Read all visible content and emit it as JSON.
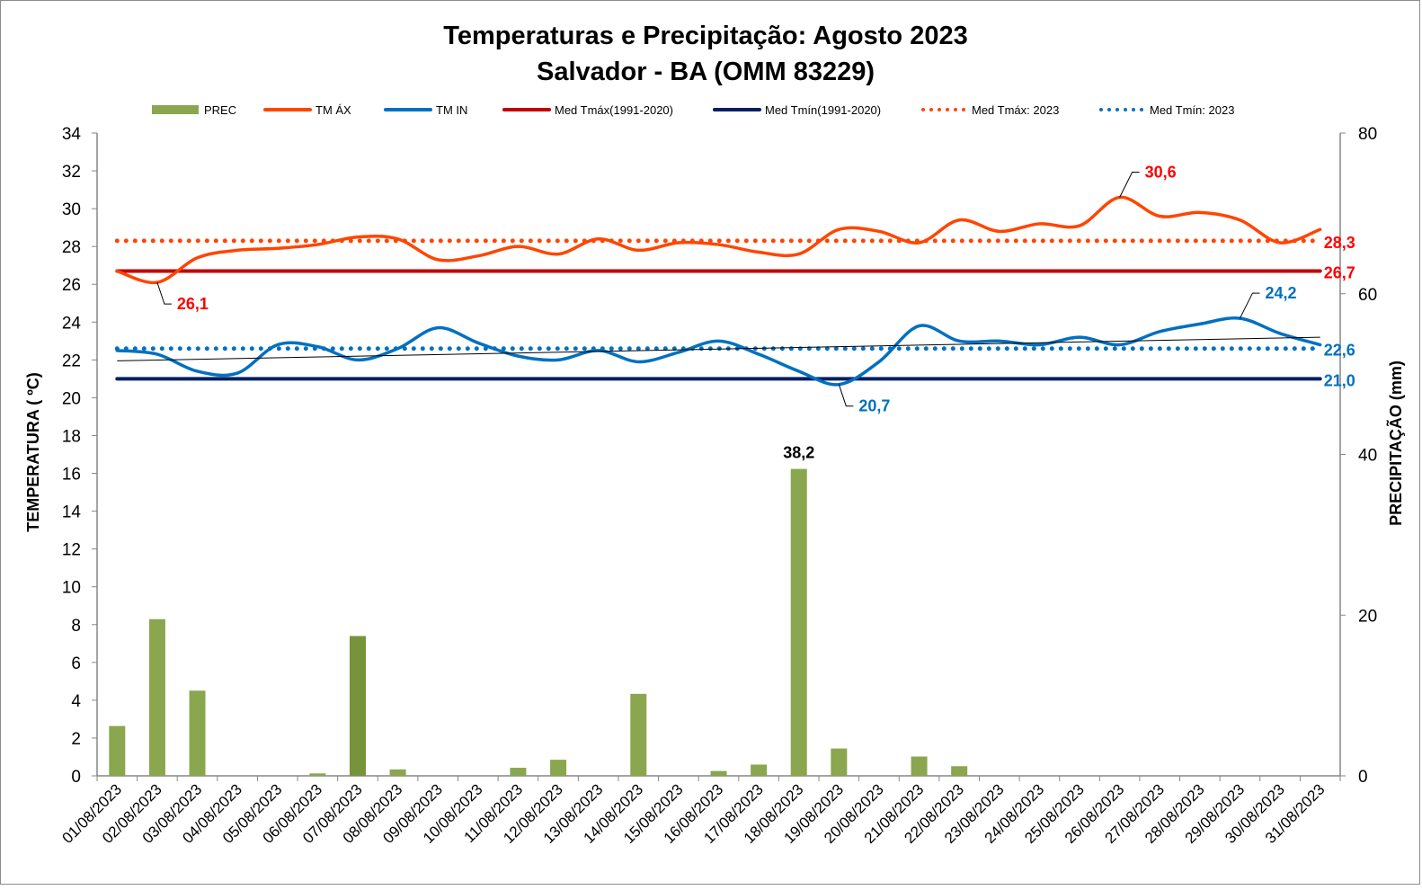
{
  "chart_data": {
    "type": "bar+line",
    "title": "Temperaturas e Precipitação: Agosto 2023",
    "subtitle": "Salvador - BA (OMM 83229)",
    "ylabel_left": "TEMPERATURA  ( ºC)",
    "ylabel_right": "PRECIPITAÇÃO  (mm)",
    "ylim_left": [
      0,
      34
    ],
    "ylim_right": [
      0,
      80
    ],
    "yticks_left": [
      "0",
      "2",
      "4",
      "6",
      "8",
      "10",
      "12",
      "14",
      "16",
      "18",
      "20",
      "22",
      "24",
      "26",
      "28",
      "30",
      "32",
      "34"
    ],
    "yticks_right": [
      "0",
      "20",
      "40",
      "60",
      "80"
    ],
    "grid": false,
    "legend_position": "top",
    "legend": [
      {
        "key": "prec",
        "label": "PREC"
      },
      {
        "key": "tmax",
        "label": "TM ÁX"
      },
      {
        "key": "tmin",
        "label": "TM IN"
      },
      {
        "key": "med_tmax_normal",
        "label": "Med Tmáx(1991-2020)"
      },
      {
        "key": "med_tmin_normal",
        "label": "Med Tmín(1991-2020)"
      },
      {
        "key": "med_tmax_2023",
        "label": "Med Tmáx: 2023"
      },
      {
        "key": "med_tmin_2023",
        "label": "Med Tmín: 2023"
      }
    ],
    "categories": [
      "01/08/2023",
      "02/08/2023",
      "03/08/2023",
      "04/08/2023",
      "05/08/2023",
      "06/08/2023",
      "07/08/2023",
      "08/08/2023",
      "09/08/2023",
      "10/08/2023",
      "11/08/2023",
      "12/08/2023",
      "13/08/2023",
      "14/08/2023",
      "15/08/2023",
      "16/08/2023",
      "17/08/2023",
      "18/08/2023",
      "19/08/2023",
      "20/08/2023",
      "21/08/2023",
      "22/08/2023",
      "23/08/2023",
      "24/08/2023",
      "25/08/2023",
      "26/08/2023",
      "27/08/2023",
      "28/08/2023",
      "29/08/2023",
      "30/08/2023",
      "31/08/2023"
    ],
    "series": [
      {
        "name": "PREC",
        "axis": "right",
        "kind": "bar",
        "color": "#8aa64e",
        "values": [
          6.2,
          19.5,
          10.6,
          0,
          0,
          0.3,
          17.4,
          0.8,
          0,
          0,
          1.0,
          2.0,
          0,
          10.2,
          0,
          0.6,
          1.4,
          38.2,
          3.4,
          0,
          2.4,
          1.2,
          0,
          0,
          0,
          0,
          0,
          0,
          0,
          0,
          0
        ]
      },
      {
        "name": "TM ÁX",
        "axis": "left",
        "kind": "line",
        "color": "#ff4500",
        "values": [
          26.7,
          26.1,
          27.4,
          27.8,
          27.9,
          28.1,
          28.5,
          28.4,
          27.3,
          27.5,
          28.0,
          27.6,
          28.4,
          27.8,
          28.2,
          28.1,
          27.7,
          27.6,
          28.9,
          28.8,
          28.2,
          29.4,
          28.8,
          29.2,
          29.1,
          30.6,
          29.6,
          29.8,
          29.4,
          28.2,
          28.9
        ]
      },
      {
        "name": "TM IN",
        "axis": "left",
        "kind": "line",
        "color": "#0070c0",
        "values": [
          22.5,
          22.3,
          21.4,
          21.3,
          22.8,
          22.7,
          22.0,
          22.6,
          23.7,
          22.9,
          22.2,
          22.0,
          22.5,
          21.9,
          22.4,
          23.0,
          22.3,
          21.4,
          20.7,
          21.9,
          23.8,
          23.0,
          23.0,
          22.8,
          23.2,
          22.8,
          23.5,
          23.9,
          24.2,
          23.4,
          22.8
        ]
      },
      {
        "name": "Med Tmáx(1991-2020)",
        "axis": "left",
        "kind": "hline",
        "color": "#c00000",
        "value": 26.7
      },
      {
        "name": "Med Tmín(1991-2020)",
        "axis": "left",
        "kind": "hline",
        "color": "#002060",
        "value": 21.0
      },
      {
        "name": "Med Tmáx: 2023",
        "axis": "left",
        "kind": "dotted",
        "color": "#ff4500",
        "value": 28.3
      },
      {
        "name": "Med Tmín: 2023",
        "axis": "left",
        "kind": "dotted",
        "color": "#0070c0",
        "value": 22.6
      }
    ],
    "trendline_tmin": {
      "start": 21.95,
      "end": 23.2,
      "color": "#000000"
    },
    "annotations": [
      {
        "label": "26,1",
        "series": "TM ÁX",
        "day_index": 1,
        "color": "#ff0000"
      },
      {
        "label": "30,6",
        "series": "TM ÁX",
        "day_index": 25,
        "color": "#ff0000"
      },
      {
        "label": "20,7",
        "series": "TM IN",
        "day_index": 18,
        "color": "#0070c0"
      },
      {
        "label": "24,2",
        "series": "TM IN",
        "day_index": 28,
        "color": "#0070c0"
      },
      {
        "label": "38,2",
        "series": "PREC",
        "day_index": 17,
        "color": "#000000"
      },
      {
        "label": "28,3",
        "series": "Med Tmáx: 2023",
        "color": "#ff0000"
      },
      {
        "label": "26,7",
        "series": "Med Tmáx(1991-2020)",
        "color": "#ff0000"
      },
      {
        "label": "22,6",
        "series": "Med Tmín: 2023",
        "color": "#0070c0"
      },
      {
        "label": "21,0",
        "series": "Med Tmín(1991-2020)",
        "color": "#0070c0"
      }
    ]
  }
}
